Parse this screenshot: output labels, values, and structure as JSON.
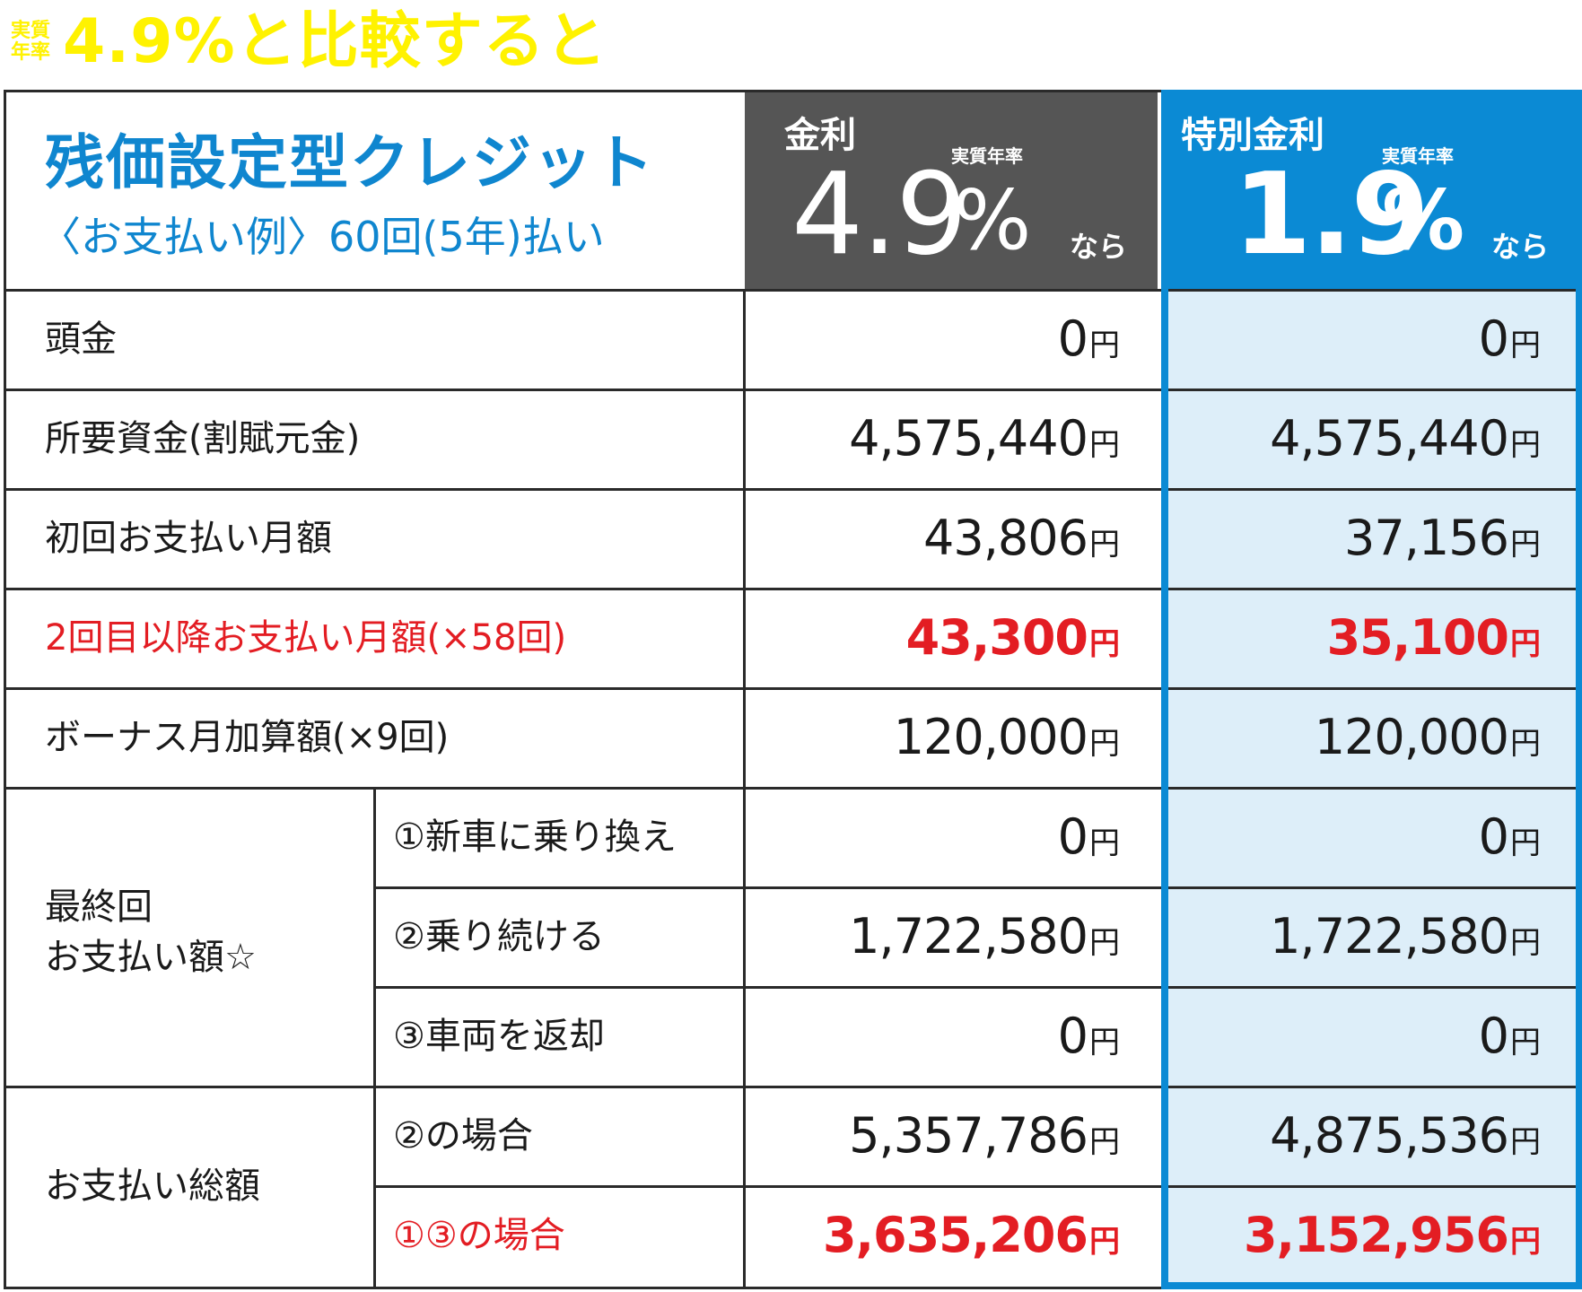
{
  "banner": {
    "badge_line1": "実質",
    "badge_line2": "年率",
    "title": "4.9%と比較すると"
  },
  "header": {
    "title": "残価設定型クレジット",
    "subtitle": "〈お支払い例〉60回(5年)払い",
    "col_a": {
      "label": "金利",
      "small": "実質年率",
      "rate": "4.9",
      "percent": "%",
      "suffix": "なら"
    },
    "col_b": {
      "label": "特別金利",
      "small": "実質年率",
      "rate": "1.9",
      "percent": "%",
      "suffix": "なら"
    }
  },
  "yen": "円",
  "rows": [
    {
      "label": "頭金",
      "a": "0",
      "b": "0"
    },
    {
      "label": "所要資金(割賦元金)",
      "a": "4,575,440",
      "b": "4,575,440"
    },
    {
      "label": "初回お支払い月額",
      "a": "43,806",
      "b": "37,156"
    },
    {
      "label": "2回目以降お支払い月額(×58回)",
      "a": "43,300",
      "b": "35,100"
    },
    {
      "label": "ボーナス月加算額(×9回)",
      "a": "120,000",
      "b": "120,000"
    }
  ],
  "final_payment": {
    "label_line1": "最終回",
    "label_line2": "お支払い額☆",
    "items": [
      {
        "label": "①新車に乗り換え",
        "a": "0",
        "b": "0"
      },
      {
        "label": "②乗り続ける",
        "a": "1,722,580",
        "b": "1,722,580"
      },
      {
        "label": "③車両を返却",
        "a": "0",
        "b": "0"
      }
    ]
  },
  "total_payment": {
    "label": "お支払い総額",
    "items": [
      {
        "label": "②の場合",
        "a": "5,357,786",
        "b": "4,875,536"
      },
      {
        "label": "①③の場合",
        "a": "3,635,206",
        "b": "3,152,956"
      }
    ]
  },
  "colors": {
    "banner_yellow": "#fff200",
    "title_blue": "#0f86cf",
    "header_gray": "#555555",
    "header_blue": "#0b8ad4",
    "highlight_red": "#e31d23",
    "blue_column_fill": "#ddeef9"
  }
}
